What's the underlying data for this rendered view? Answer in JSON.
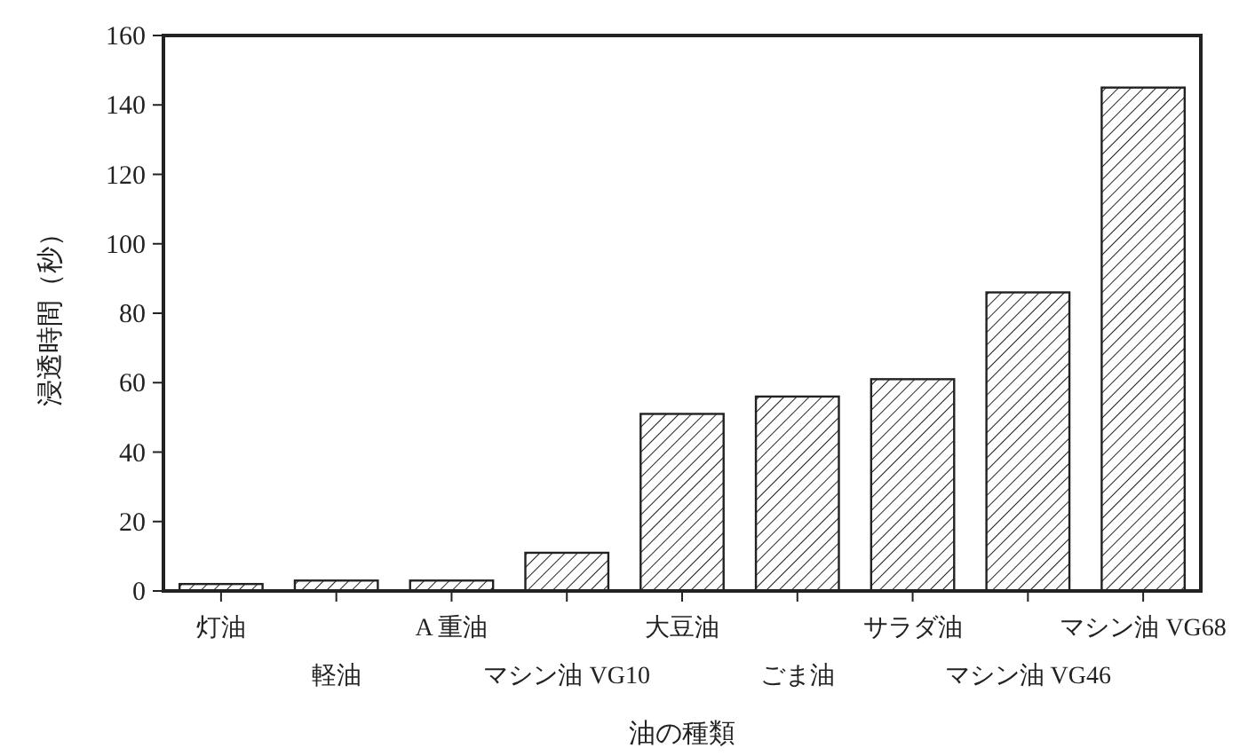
{
  "chart_data": {
    "type": "bar",
    "xlabel": "油の種類",
    "ylabel": "浸透時間（秒）",
    "categories": [
      "灯油",
      "軽油",
      "A 重油",
      "マシン油 VG10",
      "大豆油",
      "ごま油",
      "サラダ油",
      "マシン油 VG46",
      "マシン油 VG68"
    ],
    "values": [
      2,
      3,
      3,
      11,
      51,
      56,
      61,
      86,
      145
    ],
    "color": "#222222",
    "ylim": [
      0,
      160
    ],
    "yticks": [
      0,
      20,
      40,
      60,
      80,
      100,
      120,
      140,
      160
    ]
  }
}
